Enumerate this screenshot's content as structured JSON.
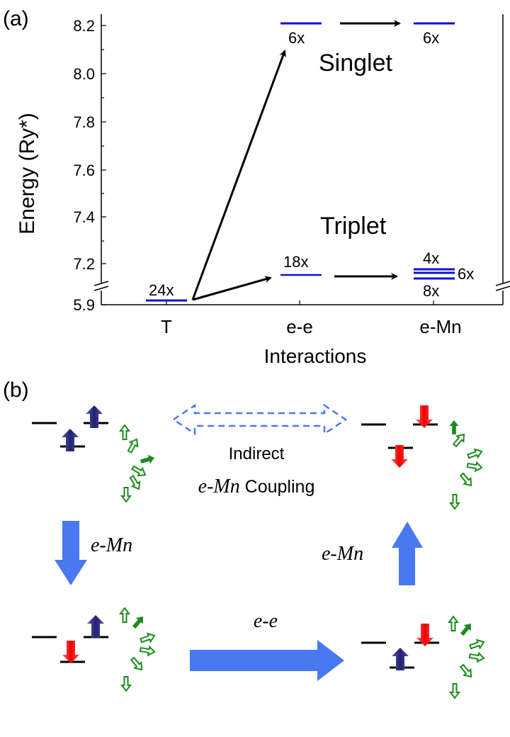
{
  "panel_a": {
    "label": "(a)",
    "ylabel": "Energy (Ry*)",
    "xlabel": "Interactions",
    "yticks": [
      "8.2",
      "8.0",
      "7.8",
      "7.6",
      "7.4",
      "7.2",
      "5.9"
    ],
    "xticks": [
      "T",
      "e-e",
      "e-Mn"
    ],
    "singlet_label": "Singlet",
    "triplet_label": "Triplet",
    "levels": {
      "t": "24x",
      "ee_singlet": "6x",
      "ee_triplet": "18x",
      "emn_singlet": "6x",
      "emn_top": "4x",
      "emn_mid": "6x",
      "emn_bot": "8x"
    },
    "colors": {
      "level": "#1010d0",
      "arrow": "#000000"
    }
  },
  "panel_b": {
    "label": "(b)",
    "indirect_line1": "Indirect",
    "indirect_italic": "e-Mn",
    "indirect_rest": " Coupling",
    "emn_left": "e-Mn",
    "emn_right": "e-Mn",
    "ee": "e-e",
    "colors": {
      "blue_arrow": "#4a78f0",
      "spin_up": "#2a2a80",
      "spin_down": "#ff1a1a",
      "mn": "#1a8c1a"
    }
  }
}
